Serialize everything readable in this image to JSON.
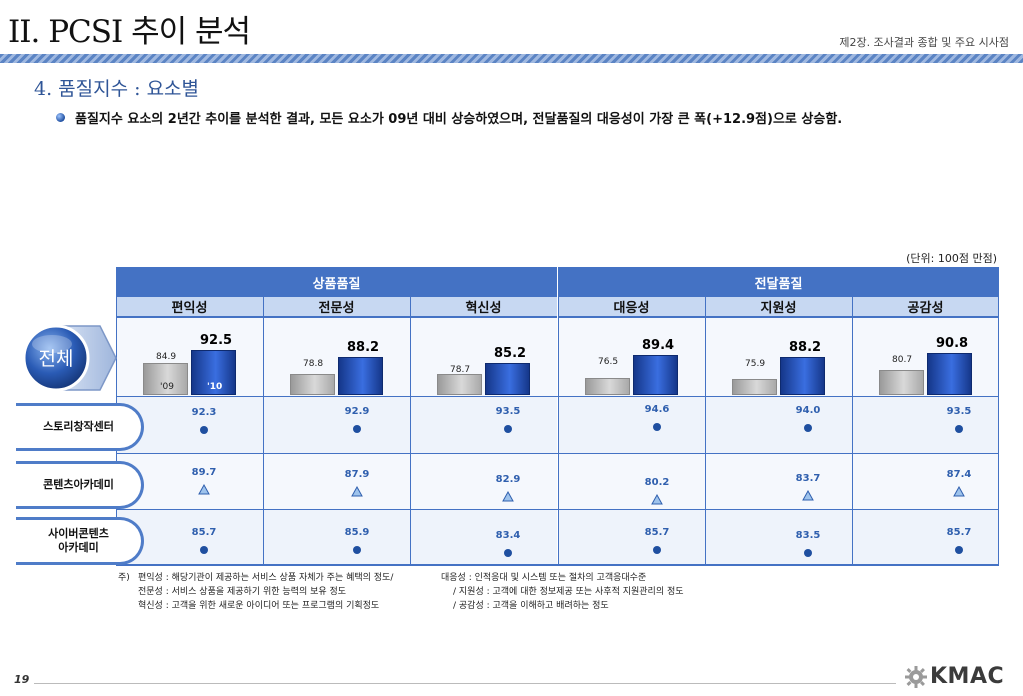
{
  "header": {
    "title": "II. PCSI 추이 분석",
    "chapter": "제2장. 조사결과 종합 및 주요 시사점"
  },
  "section_title": "4. 품질지수 : 요소별",
  "summary": "품질지수 요소의 2년간 추이를 분석한 결과, 모든 요소가 09년 대비 상승하였으며, 전달품질의 대응성이 가장 큰 폭(+12.9점)으로 상승함.",
  "unit_note": "(단위: 100점 만점)",
  "groups": [
    {
      "label": "상품품질"
    },
    {
      "label": "전달품질"
    }
  ],
  "columns": [
    {
      "label": "편익성"
    },
    {
      "label": "전문성"
    },
    {
      "label": "혁신성"
    },
    {
      "label": "대응성"
    },
    {
      "label": "지원성"
    },
    {
      "label": "공감성"
    }
  ],
  "total_label": "전체",
  "year_labels": {
    "prev": "'09",
    "curr": "'10"
  },
  "rows": [
    {
      "label": "스토리창작센터",
      "marker": "circle",
      "values": [
        "92.3",
        "92.9",
        "93.5",
        "94.6",
        "94.0",
        "93.5"
      ]
    },
    {
      "label": "콘텐츠아카데미",
      "marker": "triangle",
      "values": [
        "89.7",
        "87.9",
        "82.9",
        "80.2",
        "83.7",
        "87.4"
      ]
    },
    {
      "label_line1": "사이버콘텐츠",
      "label_line2": "아카데미",
      "marker": "circle",
      "values": [
        "85.7",
        "85.9",
        "83.4",
        "85.7",
        "83.5",
        "85.7"
      ]
    }
  ],
  "chart_data": {
    "type": "bar",
    "title": "전체",
    "categories": [
      "편익성",
      "전문성",
      "혁신성",
      "대응성",
      "지원성",
      "공감성"
    ],
    "series": [
      {
        "name": "'09",
        "values": [
          84.9,
          78.8,
          78.7,
          76.5,
          75.9,
          80.7
        ]
      },
      {
        "name": "'10",
        "values": [
          92.5,
          88.2,
          85.2,
          89.4,
          88.2,
          90.8
        ]
      }
    ],
    "ylim": [
      0,
      100
    ],
    "grid": false
  },
  "notes": {
    "prefix": "주)",
    "lines": [
      {
        "left": "편익성 : 해당기관이 제공하는 서비스 상품 자체가 주는 혜택의 정도/",
        "right": "대응성 : 인적응대 및 시스템 또는 절차의 고객응대수준"
      },
      {
        "left": "전문성 : 서비스 상품을 제공하기 위한 능력의 보유 정도",
        "right": "/ 지원성 : 고객에 대한 정보제공 또는 사후적 지원관리의 정도"
      },
      {
        "left": "혁신성 : 고객을 위한 새로운 아이디어 또는 프로그램의 기획정도",
        "right": "/ 공감성 : 고객을 이해하고 배려하는 정도"
      }
    ]
  },
  "footer": {
    "page_number": "19",
    "logo_text": "KMAC"
  },
  "colors": {
    "header_blue": "#4472c4",
    "subheader_blue": "#c7d8f2",
    "bar_prev": "#bfbfbf",
    "bar_curr": "#1f4fa0",
    "value_blue": "#2f5fae"
  }
}
